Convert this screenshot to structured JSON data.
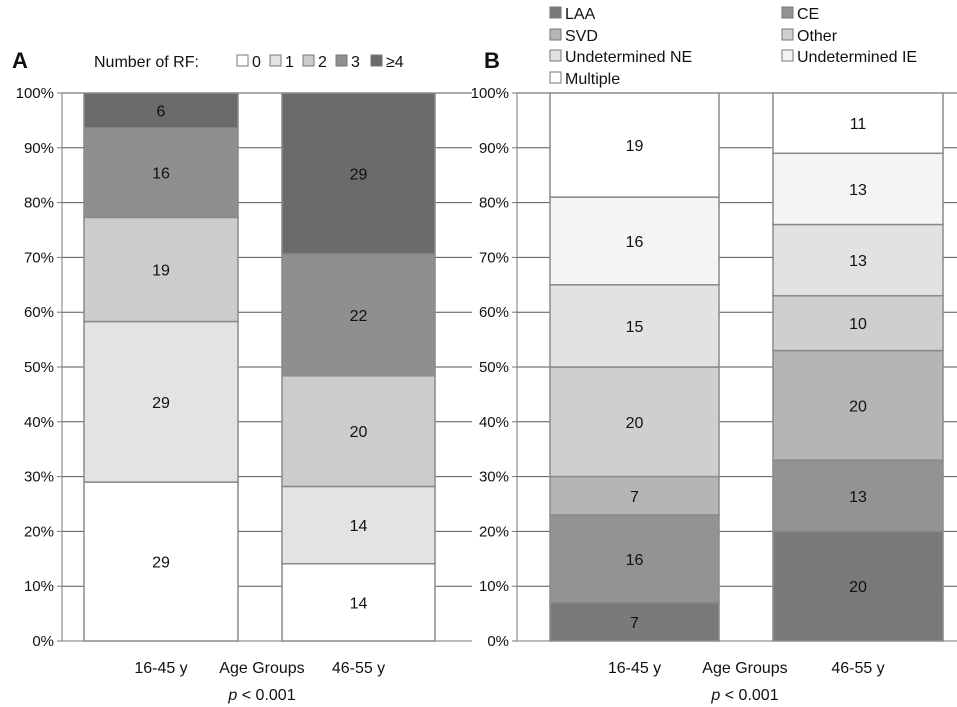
{
  "chart_data": [
    {
      "type": "bar",
      "stacked": true,
      "panel_label": "A",
      "legend_title": "Number of RF:",
      "legend_placement": "top",
      "categories": [
        "16-45 y",
        "46-55 y"
      ],
      "series": [
        {
          "name": "0",
          "values": [
            29,
            14
          ],
          "color": "#ffffff"
        },
        {
          "name": "1",
          "values": [
            29,
            14
          ],
          "color": "#e3e3e3"
        },
        {
          "name": "2",
          "values": [
            19,
            20
          ],
          "color": "#cccccc"
        },
        {
          "name": "3",
          "values": [
            16,
            22
          ],
          "color": "#8f8f8f"
        },
        {
          "name": "≥4",
          "values": [
            6,
            29
          ],
          "color": "#6b6b6b"
        }
      ],
      "segment_fractions": [
        [
          0.29,
          0.293,
          0.19,
          0.163,
          0.064
        ],
        [
          0.141,
          0.141,
          0.202,
          0.222,
          0.294
        ]
      ],
      "xlabel": "Age Groups",
      "p_prefix": "p",
      "p_suffix": " < 0.001",
      "ylim": [
        0,
        100
      ],
      "yticks": [
        "0%",
        "10%",
        "20%",
        "30%",
        "40%",
        "50%",
        "60%",
        "70%",
        "80%",
        "90%",
        "100%"
      ],
      "grid": true
    },
    {
      "type": "bar",
      "stacked": true,
      "panel_label": "B",
      "legend_placement": "top",
      "categories": [
        "16-45 y",
        "46-55 y"
      ],
      "series": [
        {
          "name": "LAA",
          "values": [
            7,
            20
          ],
          "color": "#7a7a7a"
        },
        {
          "name": "CE",
          "values": [
            16,
            13
          ],
          "color": "#939393"
        },
        {
          "name": "SVD",
          "values": [
            7,
            20
          ],
          "color": "#b5b5b5"
        },
        {
          "name": "Other",
          "values": [
            20,
            10
          ],
          "color": "#cfcfcf"
        },
        {
          "name": "Undetermined NE",
          "values": [
            15,
            13
          ],
          "color": "#e2e2e2"
        },
        {
          "name": "Undetermined IE",
          "values": [
            16,
            13
          ],
          "color": "#f4f4f4"
        },
        {
          "name": "Multiple",
          "values": [
            19,
            11
          ],
          "color": "#ffffff"
        }
      ],
      "segment_fractions": [
        [
          0.07,
          0.16,
          0.07,
          0.2,
          0.15,
          0.16,
          0.19
        ],
        [
          0.2,
          0.13,
          0.2,
          0.1,
          0.13,
          0.13,
          0.11
        ]
      ],
      "xlabel": "Age Groups",
      "p_prefix": "p",
      "p_suffix": " < 0.001",
      "ylim": [
        0,
        100
      ],
      "yticks": [
        "0%",
        "10%",
        "20%",
        "30%",
        "40%",
        "50%",
        "60%",
        "70%",
        "80%",
        "90%",
        "100%"
      ],
      "grid": true
    }
  ]
}
